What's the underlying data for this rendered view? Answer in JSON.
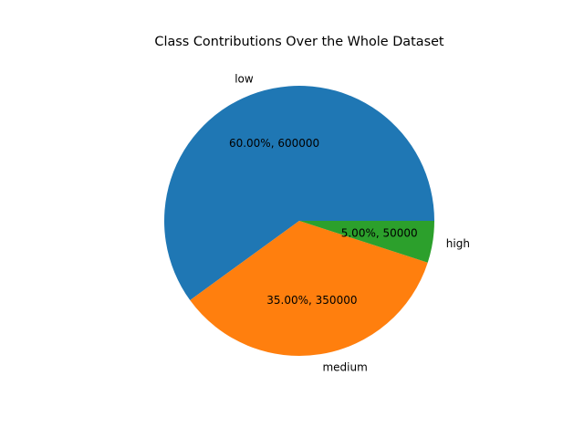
{
  "chart_data": {
    "type": "pie",
    "title": "Class Contributions Over the Whole Dataset",
    "categories": [
      "low",
      "medium",
      "high"
    ],
    "values": [
      600000,
      350000,
      50000
    ],
    "percent_labels": [
      "60.00%, 600000",
      "35.00%, 350000",
      "5.00%, 50000"
    ],
    "colors": [
      "#1f77b4",
      "#ff7f0e",
      "#2ca02c"
    ],
    "start_angle_deg": 0,
    "direction": "counterclockwise"
  }
}
